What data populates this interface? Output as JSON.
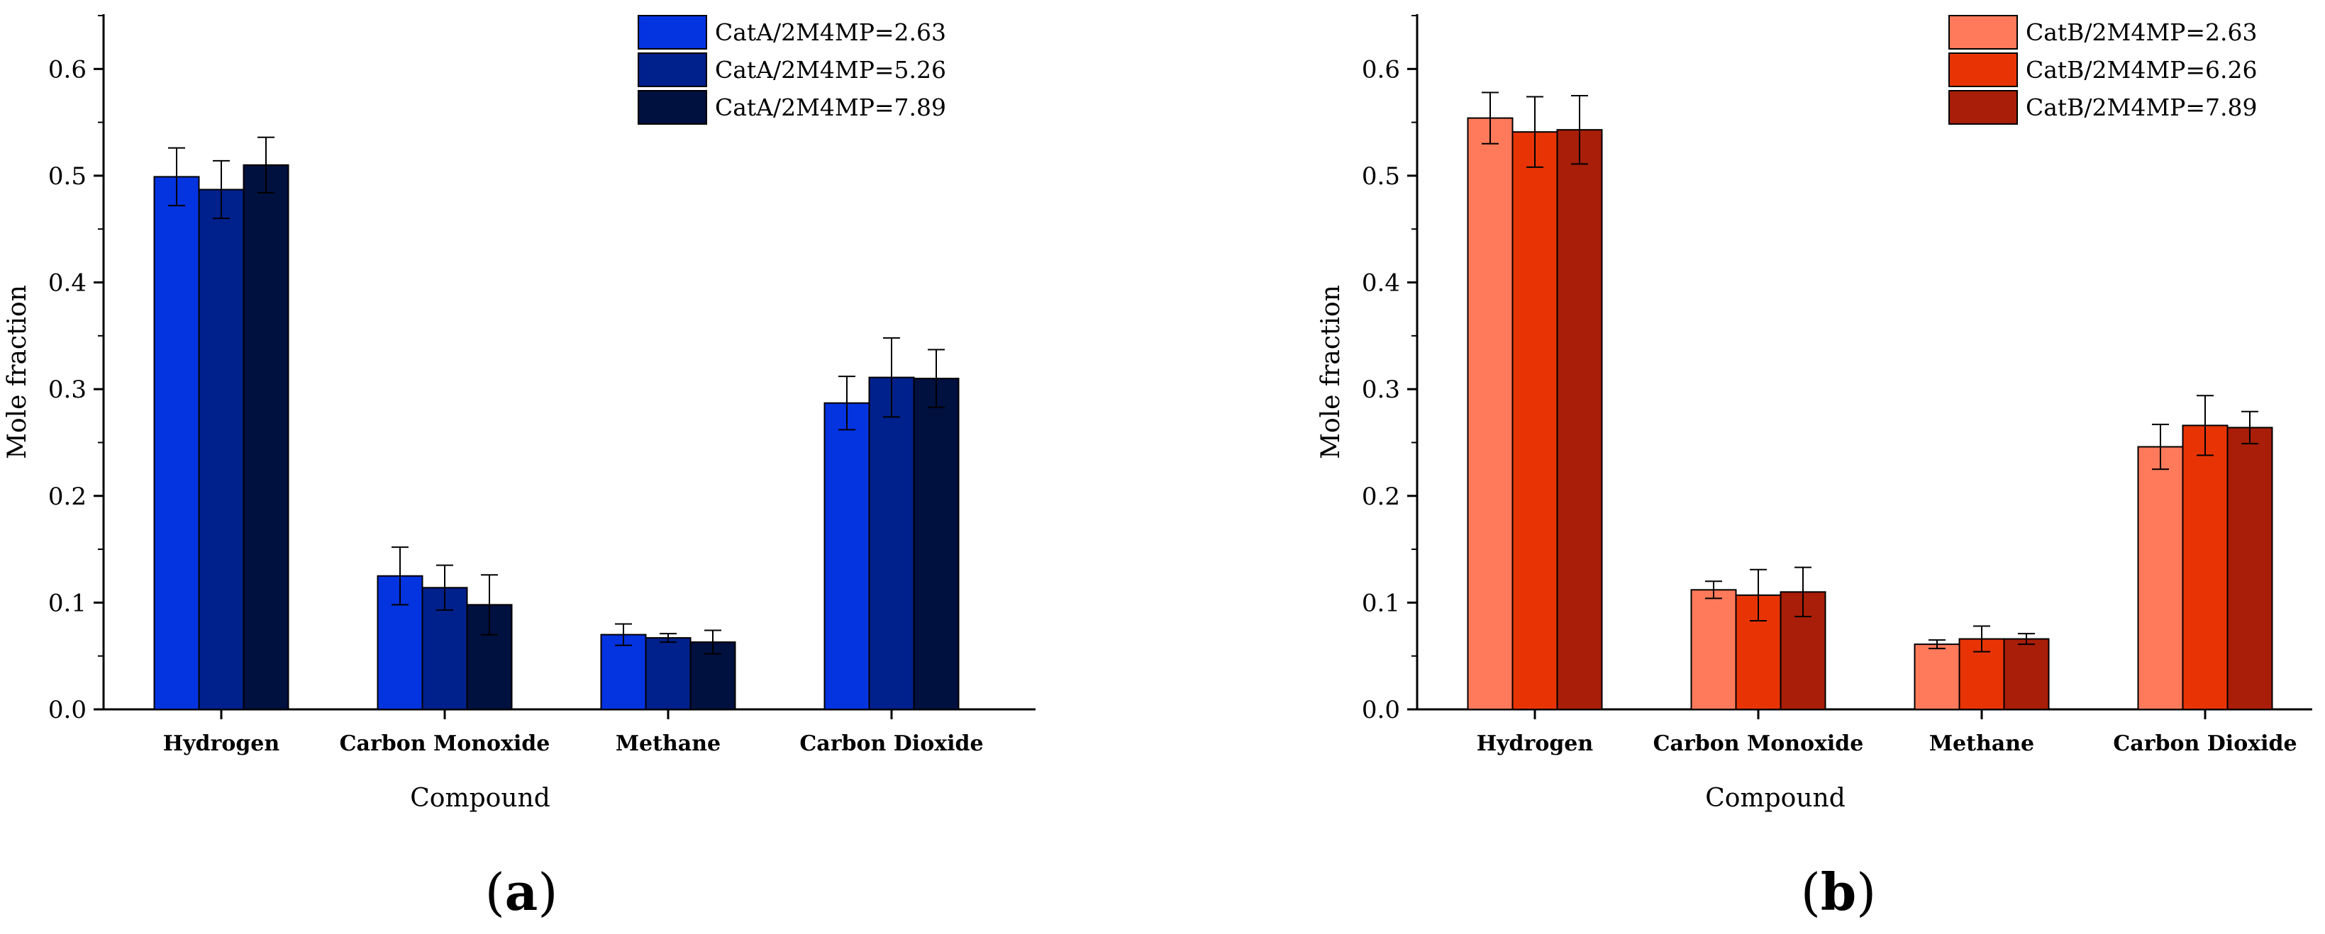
{
  "chart_data": [
    {
      "type": "bar",
      "panel_label": "a",
      "title": "",
      "xlabel": "Compound",
      "ylabel": "Mole fraction",
      "ylim": [
        0,
        0.65
      ],
      "yticks": [
        "0.0",
        "0.1",
        "0.2",
        "0.3",
        "0.4",
        "0.5",
        "0.6"
      ],
      "categories": [
        "Hydrogen",
        "Carbon Monoxide",
        "Methane",
        "Carbon Dioxide"
      ],
      "legend_position": "top-right",
      "series": [
        {
          "name": "CatA/2M4MP=2.63",
          "color": "#0433e0",
          "values": [
            0.499,
            0.125,
            0.07,
            0.287
          ],
          "errors": [
            0.027,
            0.027,
            0.01,
            0.025
          ]
        },
        {
          "name": "CatA/2M4MP=5.26",
          "color": "#00208c",
          "values": [
            0.487,
            0.114,
            0.067,
            0.311
          ],
          "errors": [
            0.027,
            0.021,
            0.004,
            0.037
          ]
        },
        {
          "name": "CatA/2M4MP=7.89",
          "color": "#00103f",
          "values": [
            0.51,
            0.098,
            0.063,
            0.31
          ],
          "errors": [
            0.026,
            0.028,
            0.011,
            0.027
          ]
        }
      ]
    },
    {
      "type": "bar",
      "panel_label": "b",
      "title": "",
      "xlabel": "Compound",
      "ylabel": "Mole fraction",
      "ylim": [
        0,
        0.65
      ],
      "yticks": [
        "0.0",
        "0.1",
        "0.2",
        "0.3",
        "0.4",
        "0.5",
        "0.6"
      ],
      "categories": [
        "Hydrogen",
        "Carbon Monoxide",
        "Methane",
        "Carbon Dioxide"
      ],
      "legend_position": "top-right",
      "series": [
        {
          "name": "CatB/2M4MP=2.63",
          "color": "#ff7a5a",
          "values": [
            0.554,
            0.112,
            0.061,
            0.246
          ],
          "errors": [
            0.024,
            0.008,
            0.004,
            0.021
          ]
        },
        {
          "name": "CatB/2M4MP=6.26",
          "color": "#e83405",
          "values": [
            0.541,
            0.107,
            0.066,
            0.266
          ],
          "errors": [
            0.033,
            0.024,
            0.012,
            0.028
          ]
        },
        {
          "name": "CatB/2M4MP=7.89",
          "color": "#a81e08",
          "values": [
            0.543,
            0.11,
            0.066,
            0.264
          ],
          "errors": [
            0.032,
            0.023,
            0.005,
            0.015
          ]
        }
      ]
    }
  ]
}
